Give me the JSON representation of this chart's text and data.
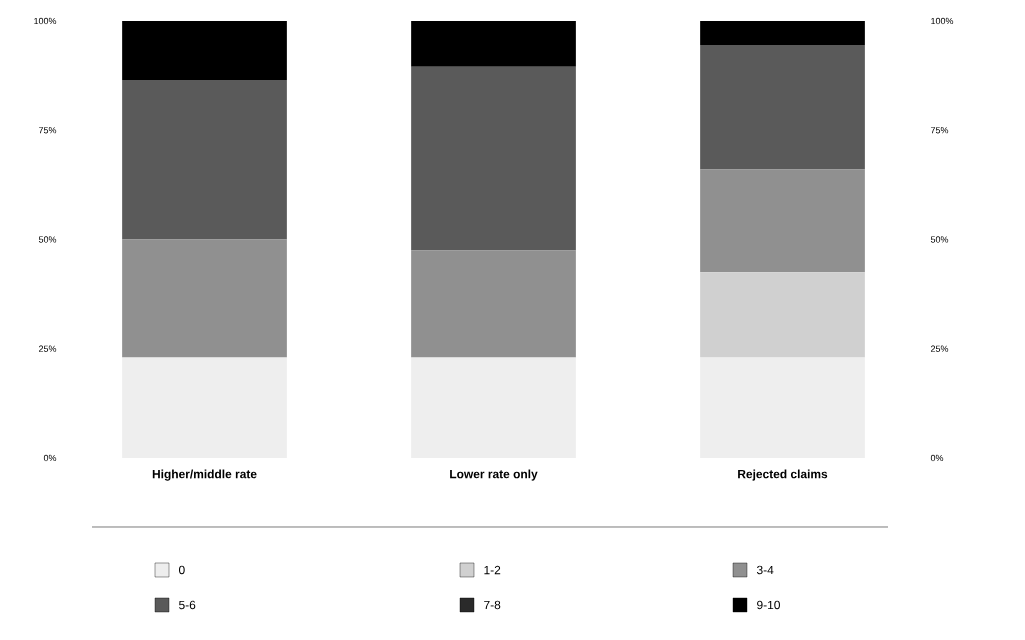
{
  "chart_data": {
    "type": "bar",
    "stacked": true,
    "categories": [
      "Higher/middle rate",
      "Lower rate only",
      "Rejected claims"
    ],
    "series": [
      {
        "name": "0",
        "color": "#eeeeee",
        "values": [
          23,
          23,
          23
        ]
      },
      {
        "name": "1-2",
        "color": "#d0d0d0",
        "values": [
          0,
          0,
          19.5
        ]
      },
      {
        "name": "3-4",
        "color": "#909090",
        "values": [
          27,
          24.5,
          23.5
        ]
      },
      {
        "name": "5-6",
        "color": "#5a5a5a",
        "values": [
          36.5,
          42,
          28.5
        ]
      },
      {
        "name": "7-8",
        "color": "#2a2a2a",
        "values": [
          0,
          0,
          0
        ]
      },
      {
        "name": "9-10",
        "color": "#000000",
        "values": [
          13.5,
          10.5,
          5.5
        ]
      }
    ],
    "ylim": [
      0,
      100
    ],
    "yticks": [
      {
        "value": 0,
        "label": "0%"
      },
      {
        "value": 25,
        "label": "25%"
      },
      {
        "value": 50,
        "label": "50%"
      },
      {
        "value": 75,
        "label": "75%"
      },
      {
        "value": 100,
        "label": "100%"
      }
    ],
    "y2lim": [
      0,
      100
    ],
    "y2ticks": [
      {
        "value": 0,
        "label": "0%"
      },
      {
        "value": 25,
        "label": "25%"
      },
      {
        "value": 50,
        "label": "50%"
      },
      {
        "value": 75,
        "label": "75%"
      },
      {
        "value": 100,
        "label": "100%"
      }
    ],
    "legend": "bottom",
    "grid": false
  }
}
